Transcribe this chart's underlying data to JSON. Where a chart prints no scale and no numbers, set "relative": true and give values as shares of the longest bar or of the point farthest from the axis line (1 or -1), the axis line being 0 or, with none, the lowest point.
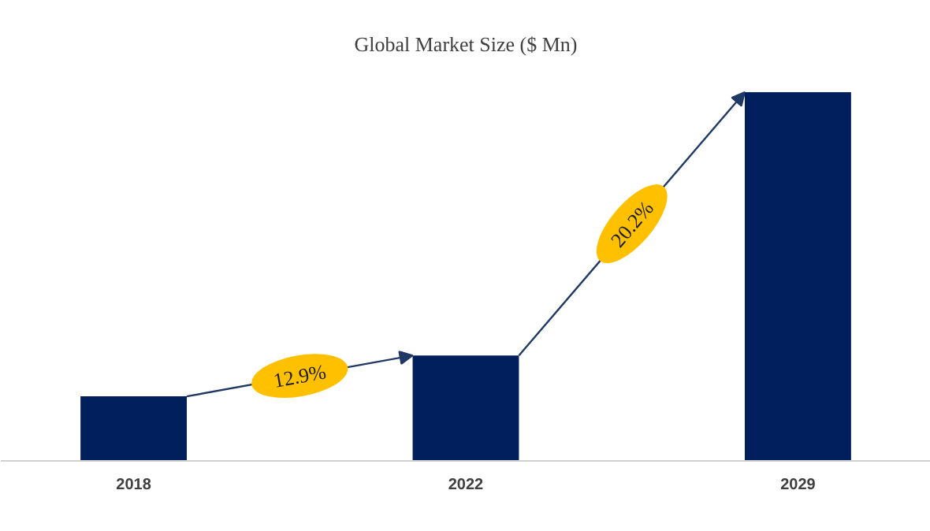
{
  "chart_data": {
    "type": "bar",
    "title": "Global Market Size ($ Mn)",
    "categories": [
      "2018",
      "2022",
      "2029"
    ],
    "values": [
      0.175,
      0.286,
      1
    ],
    "relative": true,
    "color": "#001f5c",
    "annotations": [
      "12.9%",
      "20.2%"
    ]
  }
}
